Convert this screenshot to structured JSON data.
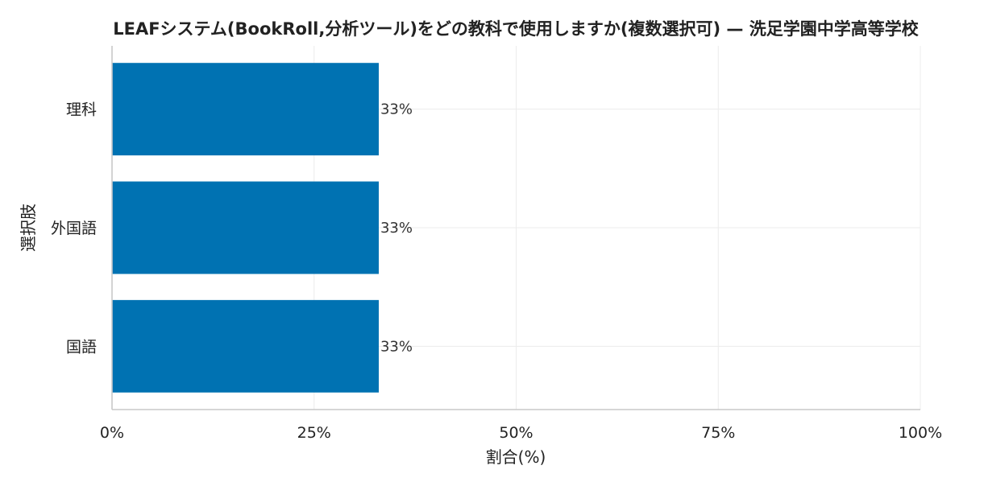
{
  "chart_data": {
    "type": "bar",
    "orientation": "horizontal",
    "title": "LEAFシステム(BookRoll,分析ツール)をどの教科で使用しますか(複数選択可) — 洗足学園中学高等学校",
    "xlabel": "割合(%)",
    "ylabel": "選択肢",
    "categories": [
      "理科",
      "外国語",
      "国語"
    ],
    "values": [
      33,
      33,
      33
    ],
    "data_labels": [
      "33%",
      "33%",
      "33%"
    ],
    "xlim": [
      0,
      100
    ],
    "xticks": [
      0,
      25,
      50,
      75,
      100
    ],
    "xtick_labels": [
      "0%",
      "25%",
      "50%",
      "75%",
      "100%"
    ],
    "grid": true,
    "bar_color": "#0072b2"
  }
}
